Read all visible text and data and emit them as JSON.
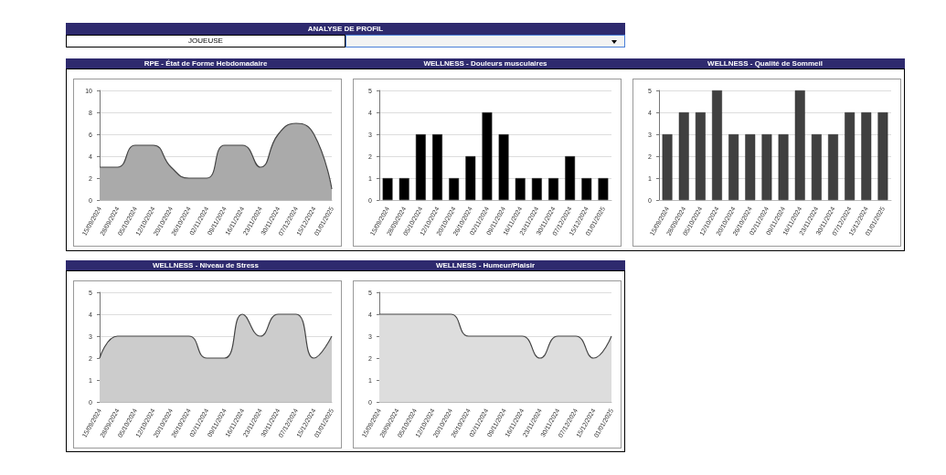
{
  "chart_data": [
    {
      "type": "other",
      "title": "ANALYSE DE PROFIL",
      "annotations": [
        "JOUEUSE"
      ]
    },
    {
      "type": "area",
      "title": "RPE - État de Forme Hebdomadaire",
      "categories": [
        "15/09/2024",
        "28/09/2024",
        "05/10/2024",
        "12/10/2024",
        "20/10/2024",
        "26/10/2024",
        "02/11/2024",
        "09/11/2024",
        "16/11/2024",
        "23/11/2024",
        "30/11/2024",
        "07/12/2024",
        "15/12/2024",
        "01/01/2025"
      ],
      "series": [
        {
          "color": "#aaaaaa",
          "values": [
            3,
            3,
            5,
            5,
            3,
            2,
            2,
            5,
            5,
            3,
            6,
            7,
            6,
            1
          ]
        }
      ],
      "ylim": [
        0,
        10
      ],
      "yticks": [
        0,
        2,
        4,
        6,
        8,
        10
      ],
      "grid": "y"
    },
    {
      "type": "bar",
      "title": "WELLNESS - Douleurs musculaires",
      "categories": [
        "15/09/2024",
        "28/09/2024",
        "05/10/2024",
        "12/10/2024",
        "20/10/2024",
        "26/10/2024",
        "02/11/2024",
        "09/11/2024",
        "16/11/2024",
        "23/11/2024",
        "30/11/2024",
        "07/12/2024",
        "15/12/2024",
        "01/01/2025"
      ],
      "series": [
        {
          "color": "#000000",
          "values": [
            1,
            1,
            3,
            3,
            1,
            2,
            4,
            3,
            1,
            1,
            1,
            2,
            1,
            1
          ]
        }
      ],
      "ylim": [
        0,
        5
      ],
      "yticks": [
        0,
        1,
        2,
        3,
        4,
        5
      ],
      "grid": "y"
    },
    {
      "type": "bar",
      "title": "WELLNESS - Qualité de Sommeil",
      "categories": [
        "15/09/2024",
        "28/09/2024",
        "05/10/2024",
        "12/10/2024",
        "20/10/2024",
        "26/10/2024",
        "02/11/2024",
        "09/11/2024",
        "16/11/2024",
        "23/11/2024",
        "30/11/2024",
        "07/12/2024",
        "15/12/2024",
        "01/01/2025"
      ],
      "series": [
        {
          "color": "#404040",
          "values": [
            3,
            4,
            4,
            5,
            3,
            3,
            3,
            3,
            5,
            3,
            3,
            4,
            4,
            4
          ]
        }
      ],
      "ylim": [
        0,
        5
      ],
      "yticks": [
        0,
        1,
        2,
        3,
        4,
        5
      ],
      "grid": "y"
    },
    {
      "type": "area",
      "title": "WELLNESS - Niveau de Stress",
      "categories": [
        "15/09/2024",
        "28/09/2024",
        "05/10/2024",
        "12/10/2024",
        "20/10/2024",
        "26/10/2024",
        "02/11/2024",
        "09/11/2024",
        "16/11/2024",
        "23/11/2024",
        "30/11/2024",
        "07/12/2024",
        "15/12/2024",
        "01/01/2025"
      ],
      "series": [
        {
          "color": "#cccccc",
          "values": [
            2,
            3,
            3,
            3,
            3,
            3,
            2,
            2,
            4,
            3,
            4,
            4,
            2,
            3
          ]
        }
      ],
      "ylim": [
        0,
        5
      ],
      "yticks": [
        0,
        1,
        2,
        3,
        4,
        5
      ],
      "grid": "y"
    },
    {
      "type": "area",
      "title": "WELLNESS - Humeur/Plaisir",
      "categories": [
        "15/09/2024",
        "28/09/2024",
        "05/10/2024",
        "12/10/2024",
        "20/10/2024",
        "26/10/2024",
        "02/11/2024",
        "09/11/2024",
        "16/11/2024",
        "23/11/2024",
        "30/11/2024",
        "07/12/2024",
        "15/12/2024",
        "01/01/2025"
      ],
      "series": [
        {
          "color": "#dddddd",
          "values": [
            4,
            4,
            4,
            4,
            4,
            3,
            3,
            3,
            3,
            2,
            3,
            3,
            2,
            3
          ]
        }
      ],
      "ylim": [
        0,
        5
      ],
      "yticks": [
        0,
        1,
        2,
        3,
        4,
        5
      ],
      "grid": "y"
    }
  ]
}
